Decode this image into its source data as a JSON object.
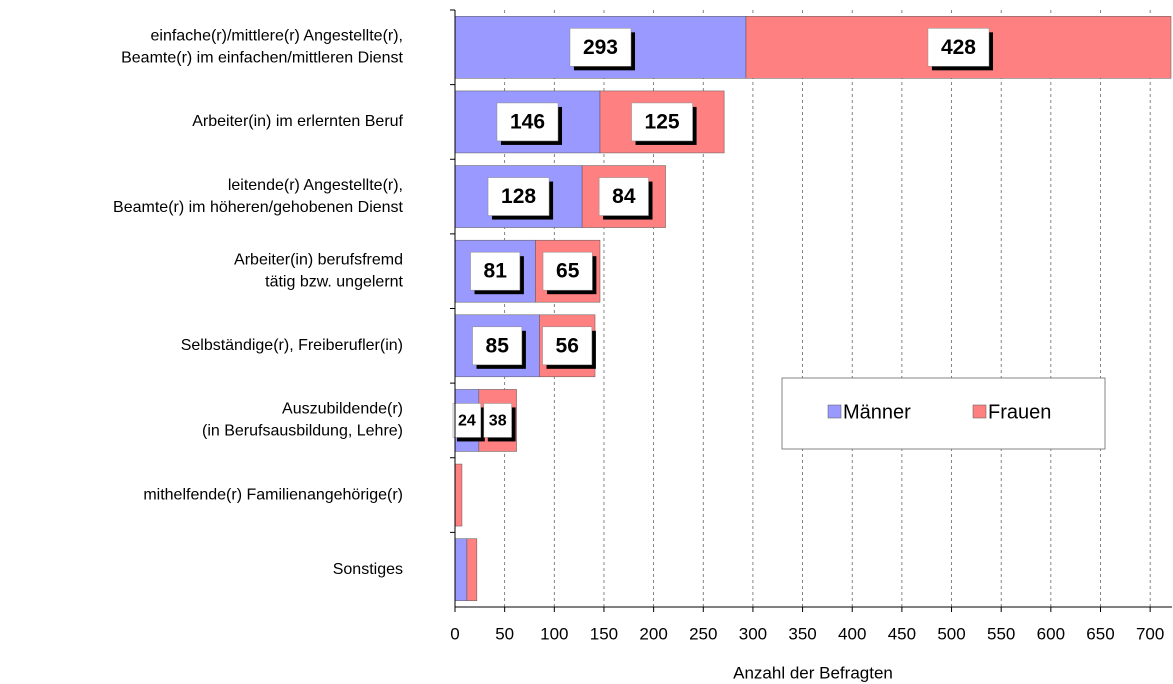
{
  "chart_data": {
    "type": "stacked-barh",
    "categories": [
      [
        "einfache(r)/mittlere(r) Angestellte(r),",
        "Beamte(r) im einfachen/mittleren Dienst"
      ],
      [
        "Arbeiter(in) im erlernten Beruf"
      ],
      [
        "leitende(r) Angestellte(r),",
        "Beamte(r) im höheren/gehobenen Dienst"
      ],
      [
        "Arbeiter(in) berufsfremd",
        "tätig bzw. ungelernt"
      ],
      [
        "Selbständige(r), Freiberufler(in)"
      ],
      [
        "Auszubildende(r)",
        "(in Berufsausbildung, Lehre)"
      ],
      [
        "mithelfende(r) Familienangehörige(r)"
      ],
      [
        "Sonstiges"
      ]
    ],
    "series": [
      {
        "name": "Männer",
        "color": "#9999ff",
        "values": [
          293,
          146,
          128,
          81,
          85,
          24,
          0,
          12
        ],
        "value_labels": [
          "293",
          "146",
          "128",
          "81",
          "85",
          "24",
          null,
          null
        ]
      },
      {
        "name": "Frauen",
        "color": "#ff8080",
        "values": [
          428,
          125,
          84,
          65,
          56,
          38,
          7,
          10
        ],
        "value_labels": [
          "428",
          "125",
          "84",
          "65",
          "56",
          "38",
          null,
          null
        ]
      }
    ],
    "xlabel": "Anzahl der Befragten",
    "xlim": [
      0,
      722
    ],
    "xticks": [
      0,
      50,
      100,
      150,
      200,
      250,
      300,
      350,
      400,
      450,
      500,
      550,
      600,
      650,
      700
    ],
    "grid": true,
    "legend": "right"
  }
}
